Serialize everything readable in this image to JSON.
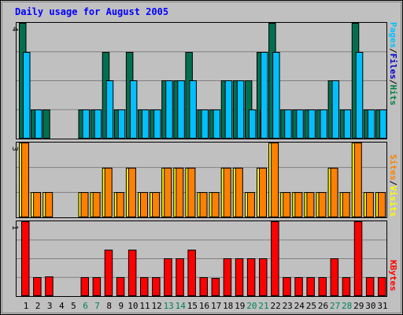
{
  "chart_data": {
    "type": "bar",
    "title": "Daily usage for August 2005",
    "categories": [
      "1",
      "2",
      "3",
      "4",
      "5",
      "6",
      "7",
      "8",
      "9",
      "10",
      "11",
      "12",
      "13",
      "14",
      "15",
      "16",
      "17",
      "18",
      "19",
      "20",
      "21",
      "22",
      "23",
      "24",
      "25",
      "26",
      "27",
      "28",
      "29",
      "30",
      "31"
    ],
    "weekend_days": [
      "6",
      "7",
      "13",
      "14",
      "20",
      "21",
      "27",
      "28"
    ],
    "panels": [
      {
        "id": "requests",
        "scale_label": "4",
        "ylim": [
          0,
          4
        ],
        "legend": [
          "Pages",
          "/",
          "Files",
          "/",
          "Hits"
        ],
        "legend_colors": [
          "#00c0ff",
          "#000000",
          "#0000cc",
          "#000000",
          "#008040"
        ],
        "series": [
          {
            "name": "Hits",
            "color": "#007050",
            "values": [
              4,
              1,
              1,
              0,
              0,
              1,
              1,
              3,
              1,
              3,
              1,
              1,
              2,
              2,
              3,
              1,
              1,
              2,
              2,
              2,
              3,
              4,
              1,
              1,
              1,
              1,
              2,
              1,
              4,
              1,
              1
            ]
          },
          {
            "name": "Files",
            "color": "#0000cc",
            "values": [
              0,
              0,
              0,
              0,
              0,
              0,
              0,
              0,
              0,
              0,
              0,
              0,
              0,
              0,
              0,
              0,
              0,
              0,
              0,
              0,
              1,
              0,
              0,
              0,
              0,
              0,
              0,
              0,
              0,
              0,
              0
            ]
          },
          {
            "name": "Pages",
            "color": "#00c0ff",
            "values": [
              3,
              1,
              0,
              0,
              0,
              1,
              1,
              2,
              1,
              2,
              1,
              1,
              2,
              2,
              2,
              1,
              1,
              2,
              2,
              1,
              3,
              3,
              1,
              1,
              1,
              1,
              2,
              1,
              3,
              1,
              1
            ]
          }
        ]
      },
      {
        "id": "visitors",
        "scale_label": "3",
        "ylim": [
          0,
          3
        ],
        "legend": [
          "Sites",
          "/",
          "Visits"
        ],
        "legend_colors": [
          "#ff8000",
          "#000000",
          "#ffff00"
        ],
        "series": [
          {
            "name": "Visits",
            "color": "#ffff00",
            "values": [
              3,
              1,
              1,
              0,
              0,
              1,
              1,
              2,
              1,
              2,
              1,
              1,
              2,
              2,
              2,
              1,
              1,
              2,
              2,
              1,
              2,
              3,
              1,
              1,
              1,
              1,
              2,
              1,
              3,
              1,
              1
            ]
          },
          {
            "name": "Sites",
            "color": "#ff8000",
            "values": [
              3,
              1,
              1,
              0,
              0,
              1,
              1,
              2,
              1,
              2,
              1,
              1,
              2,
              2,
              2,
              1,
              1,
              2,
              2,
              1,
              2,
              3,
              1,
              1,
              1,
              1,
              2,
              1,
              3,
              1,
              1
            ]
          }
        ]
      },
      {
        "id": "kbytes",
        "scale_label": "1",
        "ylim": [
          0,
          1
        ],
        "legend": [
          "KBytes"
        ],
        "legend_colors": [
          "#ff0000"
        ],
        "series": [
          {
            "name": "KBytes",
            "color": "#ff0000",
            "values": [
              1,
              0.25,
              0.26,
              0,
              0,
              0.25,
              0.25,
              0.62,
              0.25,
              0.62,
              0.25,
              0.25,
              0.5,
              0.5,
              0.62,
              0.25,
              0.24,
              0.51,
              0.51,
              0.51,
              0.5,
              1,
              0.25,
              0.25,
              0.25,
              0.25,
              0.51,
              0.25,
              1,
              0.25,
              0.25
            ]
          }
        ]
      }
    ],
    "colors": {
      "background": "#c0c0c0",
      "title": "#0000ff",
      "axis_text": "#000000",
      "weekend_text": "#00805a",
      "bar_outline": "#000000"
    }
  }
}
